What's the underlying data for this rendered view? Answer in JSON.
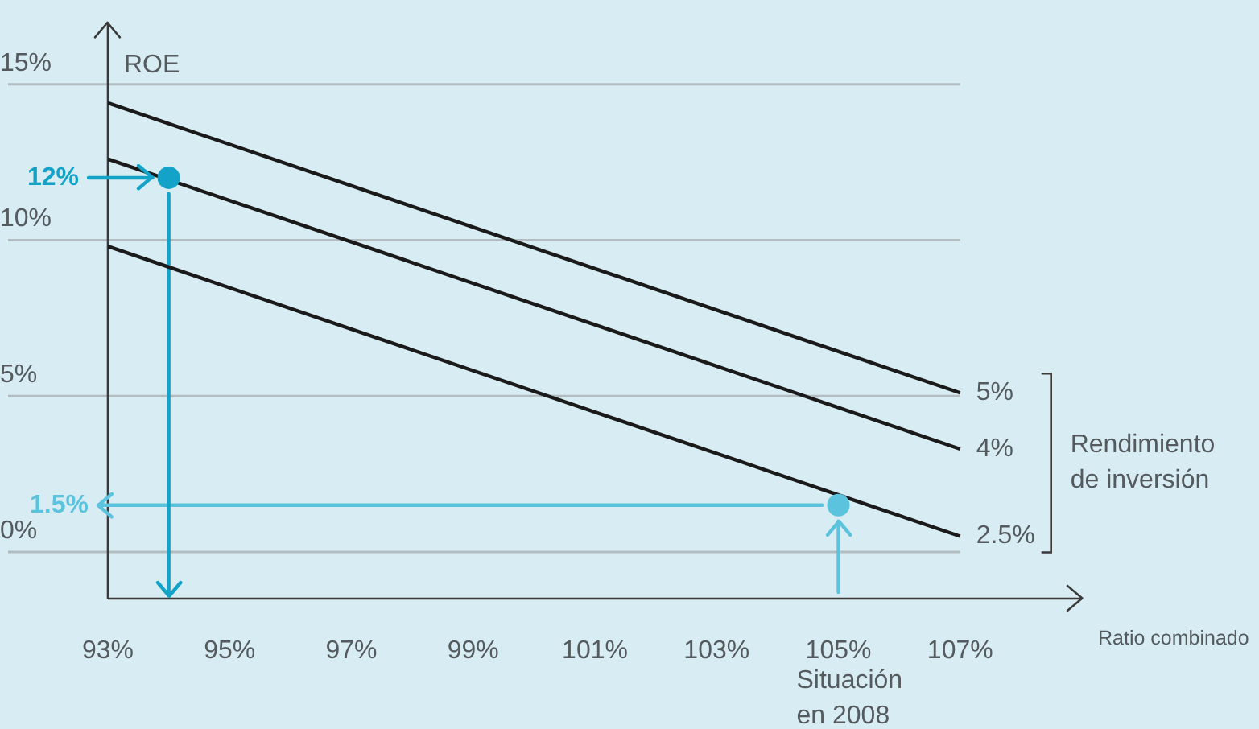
{
  "chart_data": {
    "type": "line",
    "xlabel": "Ratio combinado",
    "ylabel": "ROE",
    "legend_title": "Rendimiento de inversión",
    "xlim": [
      93,
      109
    ],
    "ylim": [
      -1.5,
      17
    ],
    "xticks": [
      {
        "value": 93,
        "label": "93%"
      },
      {
        "value": 95,
        "label": "95%"
      },
      {
        "value": 97,
        "label": "97%"
      },
      {
        "value": 99,
        "label": "99%"
      },
      {
        "value": 101,
        "label": "101%"
      },
      {
        "value": 103,
        "label": "103%"
      },
      {
        "value": 105,
        "label": "105%"
      },
      {
        "value": 107,
        "label": "107%"
      }
    ],
    "yticks": [
      {
        "value": 0,
        "label": "0%"
      },
      {
        "value": 5,
        "label": "5%"
      },
      {
        "value": 10,
        "label": "10%"
      },
      {
        "value": 15,
        "label": "15%"
      }
    ],
    "grid": "y",
    "series": [
      {
        "name": "5%",
        "color": "#1a1a1a",
        "x": [
          93,
          107
        ],
        "values": [
          14.4,
          5.1
        ]
      },
      {
        "name": "4%",
        "color": "#1a1a1a",
        "x": [
          93,
          107
        ],
        "values": [
          12.6,
          3.3
        ]
      },
      {
        "name": "2.5%",
        "color": "#1a1a1a",
        "x": [
          93,
          107
        ],
        "values": [
          9.8,
          0.5
        ]
      },
      {
        "type": "scatter",
        "x": [
          94,
          105
        ],
        "values": [
          12,
          1.5
        ],
        "colors": [
          "#13a3c9",
          "#5bc3de"
        ]
      }
    ],
    "ref_lines": [
      {
        "axis": "y",
        "value": 12,
        "label": "12%",
        "color": "#13a3c9"
      },
      {
        "axis": "x",
        "value": 94,
        "color": "#13a3c9"
      },
      {
        "axis": "y",
        "value": 1.5,
        "label": "1.5%",
        "color": "#5bc3de"
      },
      {
        "axis": "x",
        "value": 105,
        "color": "#5bc3de"
      }
    ],
    "annotations": [
      "Situación en 2008"
    ]
  }
}
